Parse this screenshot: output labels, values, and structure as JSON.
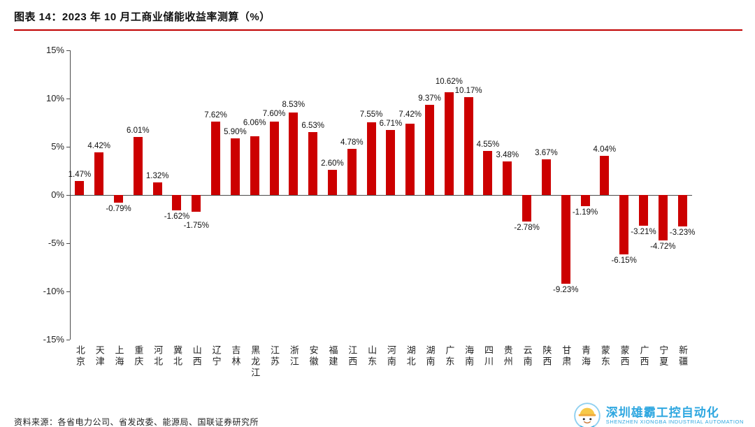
{
  "header": {
    "title": "图表 14：2023 年 10 月工商业储能收益率测算（%）"
  },
  "chart_data": {
    "type": "bar",
    "title": "2023 年 10 月工商业储能收益率测算（%）",
    "categories": [
      "北京",
      "天津",
      "上海",
      "重庆",
      "河北",
      "冀北",
      "山西",
      "辽宁",
      "吉林",
      "黑龙江",
      "江苏",
      "浙江",
      "安徽",
      "福建",
      "江西",
      "山东",
      "河南",
      "湖北",
      "湖南",
      "广东",
      "海南",
      "四川",
      "贵州",
      "云南",
      "陕西",
      "甘肃",
      "青海",
      "蒙东",
      "蒙西",
      "广西",
      "宁夏",
      "新疆"
    ],
    "values": [
      1.47,
      4.42,
      -0.79,
      6.01,
      1.32,
      -1.62,
      -1.75,
      7.62,
      5.9,
      6.06,
      7.6,
      8.53,
      6.53,
      2.6,
      4.78,
      7.55,
      6.71,
      7.42,
      9.37,
      10.62,
      10.17,
      4.55,
      3.48,
      -2.78,
      3.67,
      -9.23,
      -1.19,
      4.04,
      -6.15,
      -3.21,
      -4.72,
      -3.23
    ],
    "labels": [
      "1.47%",
      "4.42%",
      "-0.79%",
      "6.01%",
      "1.32%",
      "-1.62%",
      "-1.75%",
      "7.62%",
      "5.90%",
      "6.06%",
      "7.60%",
      "8.53%",
      "6.53%",
      "2.60%",
      "4.78%",
      "7.55%",
      "6.71%",
      "7.42%",
      "9.37%",
      "10.62%",
      "10.17%",
      "4.55%",
      "3.48%",
      "-2.78%",
      "3.67%",
      "-9.23%",
      "-1.19%",
      "4.04%",
      "-6.15%",
      "-3.21%",
      "-4.72%",
      "-3.23%"
    ],
    "ylim": [
      -15,
      15
    ],
    "y_ticks": [
      15,
      10,
      5,
      0,
      -5,
      -10,
      -15
    ],
    "y_tick_labels": [
      "15%",
      "10%",
      "5%",
      "0%",
      "-5%",
      "-10%",
      "-15%"
    ],
    "bar_color": "#CC0000",
    "grid": false,
    "legend": "none"
  },
  "footer": {
    "source": "资料来源：各省电力公司、省发改委、能源局、国联证券研究所",
    "brand_cn": "深圳雄霸工控自动化",
    "brand_en": "SHENZHEN XIONGBA INDUSTRIAL AUTOMATION"
  },
  "colors": {
    "accent_red": "#C00000",
    "brand_blue": "#2EA7E0"
  }
}
